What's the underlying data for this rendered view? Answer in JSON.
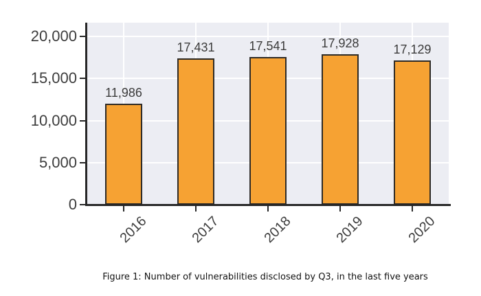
{
  "figure": {
    "caption": "Figure 1: Number of vulnerabilities disclosed by Q3, in the last five years"
  },
  "chart_data": {
    "type": "bar",
    "title": "",
    "xlabel": "",
    "ylabel": "",
    "categories": [
      "2016",
      "2017",
      "2018",
      "2019",
      "2020"
    ],
    "values": [
      11986,
      17431,
      17541,
      17928,
      17129
    ],
    "value_labels": [
      "11,986",
      "17,431",
      "17,541",
      "17,928",
      "17,129"
    ],
    "yticks": [
      0,
      5000,
      10000,
      15000,
      20000
    ],
    "ytick_labels": [
      "0",
      "5,000",
      "10,000",
      "15,000",
      "20,000"
    ],
    "ylim": [
      0,
      21650
    ],
    "grid": true,
    "x_tick_rotation": 45,
    "legend": "none",
    "colors": {
      "bar_fill": "#F6A233",
      "bar_edge": "#2D2A26",
      "plot_bg": "#ECEDF3",
      "gridline": "#FFFFFF",
      "axis": "#262626",
      "tick_label": "#3D3D3D",
      "data_label": "#3A3A3A",
      "figure_bg": "#FFFFFF"
    }
  }
}
